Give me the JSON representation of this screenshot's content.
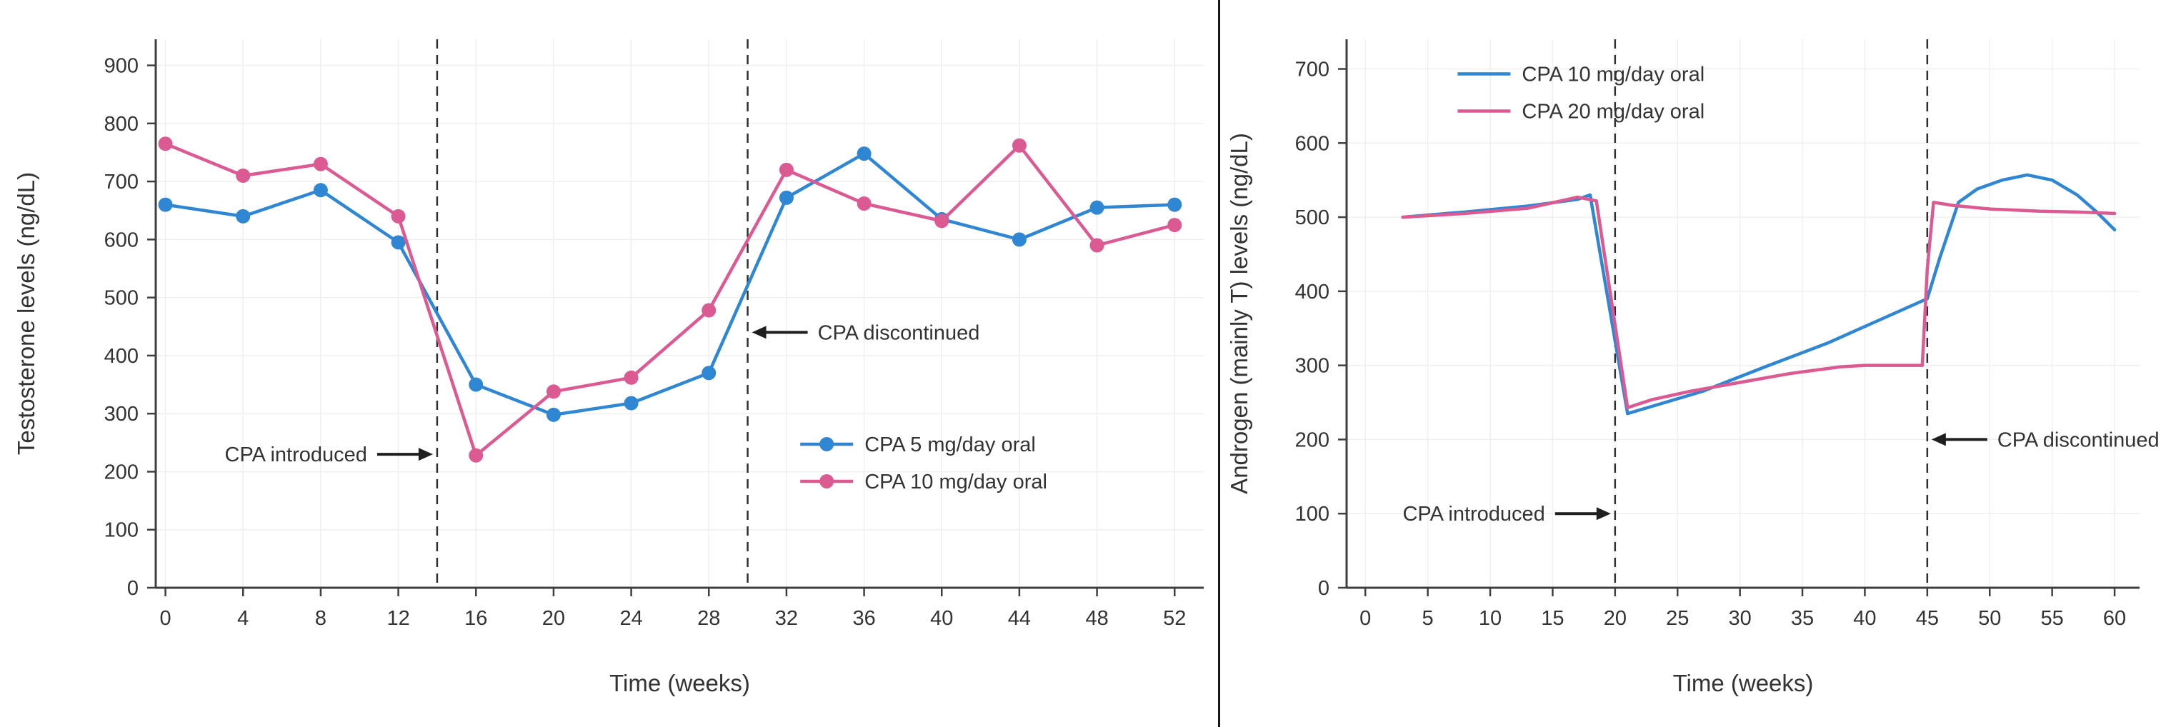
{
  "page": {
    "background": "#ffffff",
    "divider_color": "#161616"
  },
  "colors": {
    "blue_series": "#2f86d2",
    "pink_series": "#db5a92",
    "axis": "#3f3f3f",
    "grid": "#efefef",
    "dashed_line": "#2f2f2f",
    "annotation": "#1f1f1f",
    "text": "#333333"
  },
  "chart_data": [
    {
      "type": "line",
      "title": "",
      "xlabel": "Time (weeks)",
      "ylabel": "Testosterone levels (ng/dL)",
      "xlim": [
        -0.5,
        53.5
      ],
      "ylim": [
        0,
        945
      ],
      "xticks": [
        0,
        4,
        8,
        12,
        16,
        20,
        24,
        28,
        32,
        36,
        40,
        44,
        48,
        52
      ],
      "yticks": [
        0,
        100,
        200,
        300,
        400,
        500,
        600,
        700,
        800,
        900
      ],
      "grid": true,
      "legend_position": "inside-lower-right",
      "x": [
        0,
        4,
        8,
        12,
        16,
        20,
        24,
        28,
        32,
        36,
        40,
        44,
        48,
        52
      ],
      "series": [
        {
          "name": "CPA 5 mg/day oral",
          "color": "#2f86d2",
          "marker": "circle",
          "values": [
            660,
            640,
            685,
            595,
            350,
            298,
            318,
            370,
            672,
            748,
            635,
            600,
            655,
            660
          ]
        },
        {
          "name": "CPA 10 mg/day oral",
          "color": "#db5a92",
          "marker": "circle",
          "values": [
            765,
            710,
            730,
            640,
            228,
            338,
            362,
            478,
            720,
            662,
            632,
            762,
            590,
            625
          ]
        }
      ],
      "vlines": [
        {
          "x": 14
        },
        {
          "x": 30
        }
      ],
      "annotations": [
        {
          "text": "CPA introduced",
          "line_x": 14,
          "y": 230,
          "side": "left"
        },
        {
          "text": "CPA discontinued",
          "line_x": 30,
          "y": 440,
          "side": "right"
        }
      ],
      "legend": {
        "fx": 0.615,
        "fy": 0.72
      }
    },
    {
      "type": "line",
      "title": "",
      "xlabel": "Time (weeks)",
      "ylabel": "Androgen (mainly T) levels (ng/dL)",
      "xlim": [
        -1.5,
        62
      ],
      "ylim": [
        0,
        740
      ],
      "xticks": [
        0,
        5,
        10,
        15,
        20,
        25,
        30,
        35,
        40,
        45,
        50,
        55,
        60
      ],
      "yticks": [
        0,
        100,
        200,
        300,
        400,
        500,
        600,
        700
      ],
      "grid": true,
      "legend_position": "inside-upper-left",
      "series": [
        {
          "name": "CPA 10 mg/day oral",
          "color": "#2f86d2",
          "marker": "none",
          "x": [
            3,
            8,
            13,
            17,
            18,
            21,
            23,
            27,
            32,
            37,
            41,
            45,
            46,
            47.5,
            49,
            51,
            53,
            55,
            57,
            58.5,
            60
          ],
          "values": [
            500,
            507,
            515,
            524,
            530,
            235,
            245,
            265,
            298,
            330,
            360,
            390,
            445,
            520,
            538,
            550,
            557,
            550,
            530,
            508,
            483
          ]
        },
        {
          "name": "CPA 20 mg/day oral",
          "color": "#db5a92",
          "marker": "none",
          "x": [
            3,
            8,
            13,
            17,
            18.5,
            21,
            23,
            26,
            30,
            34,
            38,
            40,
            44.6,
            45,
            45.5,
            47,
            50,
            54,
            57,
            60
          ],
          "values": [
            500,
            505,
            512,
            527,
            522,
            243,
            254,
            265,
            277,
            289,
            298,
            300,
            300,
            430,
            520,
            516,
            511,
            508,
            507,
            505
          ]
        }
      ],
      "vlines": [
        {
          "x": 20
        },
        {
          "x": 45
        }
      ],
      "annotations": [
        {
          "text": "CPA introduced",
          "line_x": 20,
          "y": 100,
          "side": "left"
        },
        {
          "text": "CPA discontinued",
          "line_x": 45,
          "y": 200,
          "side": "right"
        }
      ],
      "legend": {
        "fx": 0.14,
        "fy": 0.045
      }
    }
  ]
}
